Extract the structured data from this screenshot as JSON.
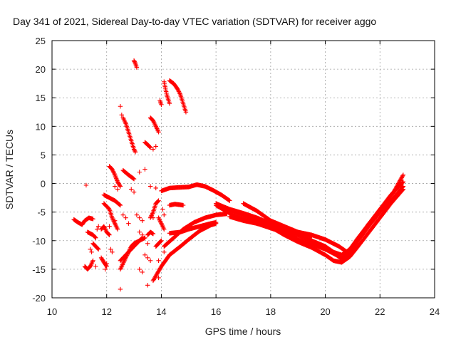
{
  "chart_data": {
    "type": "scatter",
    "title": "Day 341 of 2021, Sidereal Day-to-day VTEC variation (SDTVAR) for receiver aggo",
    "xlabel": "GPS time / hours",
    "ylabel": "SDTVAR / TECUs",
    "xlim": [
      10,
      24
    ],
    "ylim": [
      -20,
      25
    ],
    "xticks": [
      10,
      12,
      14,
      16,
      18,
      20,
      22,
      24
    ],
    "yticks": [
      -20,
      -15,
      -10,
      -5,
      0,
      5,
      10,
      15,
      20,
      25
    ],
    "grid": true,
    "marker": "+",
    "color": "#ff0000",
    "series": [
      {
        "name": "arc-a",
        "points": [
          [
            16.0,
            -3.5
          ],
          [
            16.5,
            -4.5
          ],
          [
            17.0,
            -5.5
          ],
          [
            17.5,
            -6.5
          ],
          [
            18.0,
            -7.2
          ],
          [
            18.5,
            -7.8
          ],
          [
            19.0,
            -8.5
          ],
          [
            19.5,
            -9.0
          ],
          [
            20.0,
            -9.8
          ],
          [
            20.5,
            -11.0
          ],
          [
            20.8,
            -12.0
          ],
          [
            21.0,
            -11.0
          ],
          [
            21.3,
            -9.0
          ],
          [
            21.6,
            -7.0
          ],
          [
            22.0,
            -4.5
          ],
          [
            22.4,
            -2.0
          ],
          [
            22.85,
            0.3
          ]
        ]
      },
      {
        "name": "arc-b",
        "points": [
          [
            16.0,
            -3.8
          ],
          [
            16.5,
            -5.2
          ],
          [
            17.0,
            -6.2
          ],
          [
            17.5,
            -7.0
          ],
          [
            18.0,
            -7.8
          ],
          [
            18.5,
            -8.6
          ],
          [
            19.0,
            -9.8
          ],
          [
            19.5,
            -10.6
          ],
          [
            20.0,
            -11.5
          ],
          [
            20.4,
            -12.5
          ],
          [
            20.6,
            -13.2
          ],
          [
            20.9,
            -12.2
          ],
          [
            21.2,
            -10.0
          ],
          [
            21.6,
            -7.4
          ],
          [
            22.0,
            -5.0
          ],
          [
            22.5,
            -2.5
          ],
          [
            22.85,
            -0.5
          ]
        ]
      },
      {
        "name": "arc-c",
        "points": [
          [
            16.5,
            -5.8
          ],
          [
            17.0,
            -6.5
          ],
          [
            17.5,
            -7.0
          ],
          [
            18.0,
            -7.6
          ],
          [
            18.5,
            -9.0
          ],
          [
            19.0,
            -10.2
          ],
          [
            19.5,
            -11.2
          ],
          [
            20.0,
            -12.5
          ],
          [
            20.3,
            -13.5
          ],
          [
            20.6,
            -13.8
          ],
          [
            20.9,
            -12.8
          ],
          [
            21.2,
            -11.0
          ],
          [
            21.6,
            -8.5
          ],
          [
            22.0,
            -6.0
          ],
          [
            22.4,
            -3.5
          ],
          [
            22.85,
            -1.0
          ]
        ]
      },
      {
        "name": "arc-d",
        "points": [
          [
            16.5,
            -4.5
          ],
          [
            17.0,
            -5.2
          ],
          [
            17.5,
            -6.0
          ],
          [
            18.0,
            -7.0
          ],
          [
            18.5,
            -8.3
          ],
          [
            19.0,
            -9.0
          ],
          [
            19.5,
            -10.0
          ],
          [
            20.0,
            -11.0
          ],
          [
            20.3,
            -12.0
          ],
          [
            20.6,
            -12.5
          ],
          [
            20.9,
            -11.5
          ],
          [
            21.2,
            -9.5
          ],
          [
            21.6,
            -7.0
          ],
          [
            22.1,
            -4.0
          ],
          [
            22.5,
            -1.5
          ],
          [
            22.85,
            1.5
          ]
        ]
      },
      {
        "name": "arc-e",
        "points": [
          [
            17.0,
            -3.5
          ],
          [
            17.5,
            -4.8
          ],
          [
            18.0,
            -6.5
          ],
          [
            18.5,
            -7.5
          ],
          [
            19.0,
            -8.5
          ],
          [
            19.5,
            -9.2
          ]
        ]
      },
      {
        "name": "arc-f",
        "points": [
          [
            14.1,
            -11.0
          ],
          [
            14.5,
            -9.3
          ],
          [
            14.8,
            -8.0
          ],
          [
            15.2,
            -6.8
          ],
          [
            15.6,
            -6.0
          ],
          [
            16.0,
            -5.5
          ],
          [
            16.4,
            -5.3
          ]
        ]
      },
      {
        "name": "arc-g",
        "points": [
          [
            14.3,
            -8.7
          ],
          [
            14.7,
            -8.5
          ],
          [
            15.0,
            -8.0
          ],
          [
            15.4,
            -7.5
          ],
          [
            15.8,
            -7.0
          ],
          [
            16.0,
            -6.8
          ]
        ]
      },
      {
        "name": "arc-h",
        "points": [
          [
            13.7,
            -17.0
          ],
          [
            14.0,
            -14.5
          ],
          [
            14.3,
            -12.5
          ],
          [
            14.7,
            -11.0
          ],
          [
            15.0,
            -9.8
          ],
          [
            15.4,
            -8.3
          ],
          [
            15.8,
            -7.3
          ],
          [
            16.0,
            -7.0
          ]
        ]
      },
      {
        "name": "arc-i",
        "points": [
          [
            14.0,
            -1.3
          ],
          [
            14.3,
            -0.8
          ],
          [
            14.6,
            -0.7
          ],
          [
            15.0,
            -0.6
          ],
          [
            15.3,
            -0.2
          ],
          [
            15.6,
            -0.5
          ],
          [
            15.9,
            -1.2
          ],
          [
            16.2,
            -2.0
          ],
          [
            16.5,
            -3.0
          ]
        ]
      },
      {
        "name": "arc-j",
        "points": [
          [
            14.3,
            -3.8
          ],
          [
            14.5,
            -3.6
          ],
          [
            14.8,
            -3.8
          ]
        ]
      },
      {
        "name": "arc-k",
        "points": [
          [
            14.3,
            18.0
          ],
          [
            14.45,
            17.5
          ],
          [
            14.6,
            16.5
          ],
          [
            14.7,
            15.5
          ],
          [
            14.8,
            14.0
          ],
          [
            14.9,
            12.5
          ]
        ]
      },
      {
        "name": "arc-l",
        "points": [
          [
            14.1,
            17.8
          ],
          [
            14.2,
            15.5
          ],
          [
            14.3,
            14.0
          ]
        ]
      },
      {
        "name": "arc-m",
        "points": [
          [
            13.95,
            14.5
          ],
          [
            14.0,
            13.8
          ]
        ]
      },
      {
        "name": "arc-n",
        "points": [
          [
            13.6,
            11.5
          ],
          [
            13.7,
            11.0
          ],
          [
            13.8,
            10.0
          ],
          [
            13.9,
            9.0
          ]
        ]
      },
      {
        "name": "arc-o",
        "points": [
          [
            13.4,
            7.2
          ],
          [
            13.5,
            6.8
          ],
          [
            13.6,
            6.3
          ]
        ]
      },
      {
        "name": "arc-p",
        "points": [
          [
            13.0,
            21.5
          ],
          [
            13.05,
            21.0
          ],
          [
            13.1,
            20.3
          ]
        ]
      },
      {
        "name": "arc-q",
        "points": [
          [
            12.6,
            11.5
          ],
          [
            12.7,
            10.5
          ],
          [
            12.8,
            9.0
          ],
          [
            12.9,
            7.5
          ],
          [
            13.0,
            6.0
          ],
          [
            13.05,
            5.5
          ]
        ]
      },
      {
        "name": "arc-r",
        "points": [
          [
            12.1,
            3.0
          ],
          [
            12.2,
            2.5
          ],
          [
            12.3,
            1.5
          ],
          [
            12.4,
            0.3
          ],
          [
            12.5,
            -0.5
          ]
        ]
      },
      {
        "name": "arc-s",
        "points": [
          [
            12.6,
            2.3
          ],
          [
            12.8,
            1.5
          ],
          [
            13.0,
            0.8
          ]
        ]
      },
      {
        "name": "arc-t",
        "points": [
          [
            11.9,
            -2.0
          ],
          [
            12.1,
            -2.5
          ],
          [
            12.3,
            -3.0
          ],
          [
            12.5,
            -3.8
          ]
        ]
      },
      {
        "name": "arc-u",
        "points": [
          [
            10.8,
            -6.3
          ],
          [
            10.95,
            -6.8
          ],
          [
            11.1,
            -7.2
          ],
          [
            11.2,
            -6.5
          ],
          [
            11.35,
            -6.0
          ],
          [
            11.5,
            -6.2
          ]
        ]
      },
      {
        "name": "arc-v",
        "points": [
          [
            11.2,
            -14.5
          ],
          [
            11.3,
            -15.0
          ],
          [
            11.4,
            -14.5
          ],
          [
            11.5,
            -13.5
          ]
        ]
      },
      {
        "name": "arc-w",
        "points": [
          [
            11.3,
            -8.5
          ],
          [
            11.5,
            -9.0
          ],
          [
            11.6,
            -9.5
          ]
        ]
      },
      {
        "name": "arc-x",
        "points": [
          [
            11.5,
            -10.5
          ],
          [
            11.6,
            -11.0
          ],
          [
            11.7,
            -11.5
          ]
        ]
      },
      {
        "name": "arc-y",
        "points": [
          [
            11.8,
            -13.0
          ],
          [
            11.9,
            -13.8
          ],
          [
            12.0,
            -14.5
          ]
        ]
      },
      {
        "name": "arc-z",
        "points": [
          [
            12.5,
            -15.0
          ],
          [
            12.6,
            -14.0
          ],
          [
            12.7,
            -13.0
          ],
          [
            12.8,
            -12.0
          ],
          [
            12.9,
            -11.0
          ],
          [
            13.0,
            -10.5
          ],
          [
            13.2,
            -10.0
          ],
          [
            13.4,
            -9.5
          ]
        ]
      },
      {
        "name": "arc-aa",
        "points": [
          [
            12.5,
            -13.5
          ],
          [
            12.7,
            -12.5
          ],
          [
            12.9,
            -11.5
          ],
          [
            13.1,
            -10.5
          ],
          [
            13.3,
            -9.5
          ]
        ]
      },
      {
        "name": "arc-ab",
        "points": [
          [
            11.9,
            -3.5
          ],
          [
            12.1,
            -4.5
          ],
          [
            12.2,
            -6.0
          ],
          [
            12.3,
            -7.0
          ],
          [
            12.4,
            -8.0
          ]
        ]
      },
      {
        "name": "arc-ac",
        "points": [
          [
            11.8,
            -8.0
          ],
          [
            11.9,
            -7.5
          ],
          [
            12.0,
            -8.5
          ],
          [
            12.1,
            -9.0
          ]
        ]
      },
      {
        "name": "arc-ad",
        "points": [
          [
            13.5,
            -9.0
          ],
          [
            13.6,
            -8.5
          ],
          [
            13.7,
            -8.8
          ]
        ]
      },
      {
        "name": "arc-ae",
        "points": [
          [
            13.6,
            -6.0
          ],
          [
            13.7,
            -5.0
          ],
          [
            13.8,
            -3.5
          ],
          [
            13.9,
            -3.0
          ]
        ]
      },
      {
        "name": "arc-af",
        "points": [
          [
            13.9,
            -6.0
          ],
          [
            14.0,
            -7.0
          ],
          [
            14.1,
            -8.0
          ]
        ]
      },
      {
        "name": "arc-ag",
        "points": [
          [
            13.8,
            -11.0
          ],
          [
            13.9,
            -10.5
          ],
          [
            14.0,
            -10.0
          ]
        ]
      }
    ],
    "scatter_points": [
      [
        11.25,
        -0.3
      ],
      [
        12.5,
        13.5
      ],
      [
        12.55,
        12.0
      ],
      [
        13.4,
        2.5
      ],
      [
        13.2,
        2.0
      ],
      [
        13.6,
        -0.5
      ],
      [
        13.8,
        -0.8
      ],
      [
        12.9,
        -1.0
      ],
      [
        13.0,
        -1.5
      ],
      [
        12.3,
        -0.5
      ],
      [
        12.4,
        -1.0
      ],
      [
        12.6,
        -5.5
      ],
      [
        12.7,
        -6.0
      ],
      [
        12.8,
        -7.0
      ],
      [
        13.1,
        -5.5
      ],
      [
        13.2,
        -6.0
      ],
      [
        13.3,
        -6.5
      ],
      [
        13.2,
        -8.5
      ],
      [
        13.3,
        -9.0
      ],
      [
        13.5,
        -10.5
      ],
      [
        13.4,
        -12.5
      ],
      [
        13.5,
        -13.0
      ],
      [
        13.6,
        -13.5
      ],
      [
        13.2,
        -15.0
      ],
      [
        13.3,
        -15.5
      ],
      [
        12.5,
        -18.5
      ],
      [
        13.5,
        -17.8
      ],
      [
        13.9,
        -16.5
      ],
      [
        13.9,
        -13.5
      ],
      [
        14.1,
        -12.0
      ],
      [
        14.05,
        -4.5
      ],
      [
        14.1,
        -5.5
      ],
      [
        11.4,
        -11.5
      ],
      [
        11.45,
        -12.0
      ],
      [
        11.6,
        -14.5
      ],
      [
        11.95,
        -15.0
      ],
      [
        12.0,
        -14.0
      ],
      [
        12.15,
        -11.5
      ],
      [
        12.2,
        -12.0
      ],
      [
        12.3,
        -6.5
      ],
      [
        12.1,
        -7.5
      ],
      [
        11.7,
        -7.5
      ],
      [
        11.65,
        -8.0
      ],
      [
        13.7,
        -6.0
      ],
      [
        13.7,
        6.0
      ],
      [
        13.8,
        6.5
      ]
    ]
  }
}
